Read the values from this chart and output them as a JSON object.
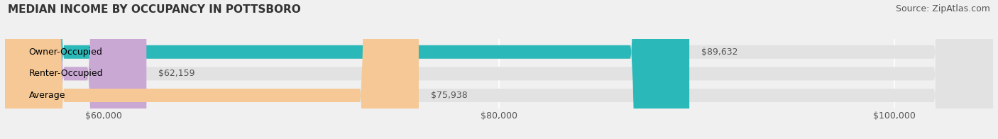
{
  "title": "MEDIAN INCOME BY OCCUPANCY IN POTTSBORO",
  "source": "Source: ZipAtlas.com",
  "categories": [
    "Owner-Occupied",
    "Renter-Occupied",
    "Average"
  ],
  "values": [
    89632,
    62159,
    75938
  ],
  "labels": [
    "$89,632",
    "$62,159",
    "$75,938"
  ],
  "bar_colors": [
    "#2ab8b8",
    "#c9a8d4",
    "#f5c895"
  ],
  "xlim_min": 55000,
  "xlim_max": 105000,
  "xticks": [
    60000,
    80000,
    100000
  ],
  "xtick_labels": [
    "$60,000",
    "$80,000",
    "$100,000"
  ],
  "background_color": "#f0f0f0",
  "bar_background_color": "#e2e2e2",
  "title_fontsize": 11,
  "source_fontsize": 9,
  "label_fontsize": 9,
  "tick_fontsize": 9
}
